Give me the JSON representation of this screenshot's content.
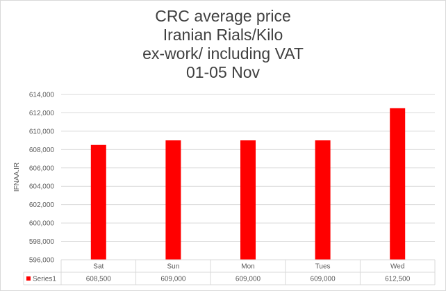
{
  "chart_data": {
    "type": "bar",
    "title_lines": [
      "CRC average price",
      "Iranian Rials/Kilo",
      "ex-work/ including VAT",
      "01-05 Nov"
    ],
    "ylabel": "IFNAA.IR",
    "categories": [
      "Sat",
      "Sun",
      "Mon",
      "Tues",
      "Wed"
    ],
    "series": [
      {
        "name": "Series1",
        "values": [
          608500,
          609000,
          609000,
          609000,
          612500
        ],
        "display_values": [
          "608,500",
          "609,000",
          "609,000",
          "609,000",
          "612,500"
        ],
        "color": "#ff0000"
      }
    ],
    "ylim": [
      596000,
      614000
    ],
    "yticks": [
      596000,
      598000,
      600000,
      602000,
      604000,
      606000,
      608000,
      610000,
      612000,
      614000
    ],
    "ytick_labels": [
      "596,000",
      "598,000",
      "600,000",
      "602,000",
      "604,000",
      "606,000",
      "608,000",
      "610,000",
      "612,000",
      "614,000"
    ],
    "grid": true,
    "data_table": true,
    "colors": {
      "gridline": "#d9d9d9",
      "text": "#595959",
      "title": "#404040"
    }
  }
}
